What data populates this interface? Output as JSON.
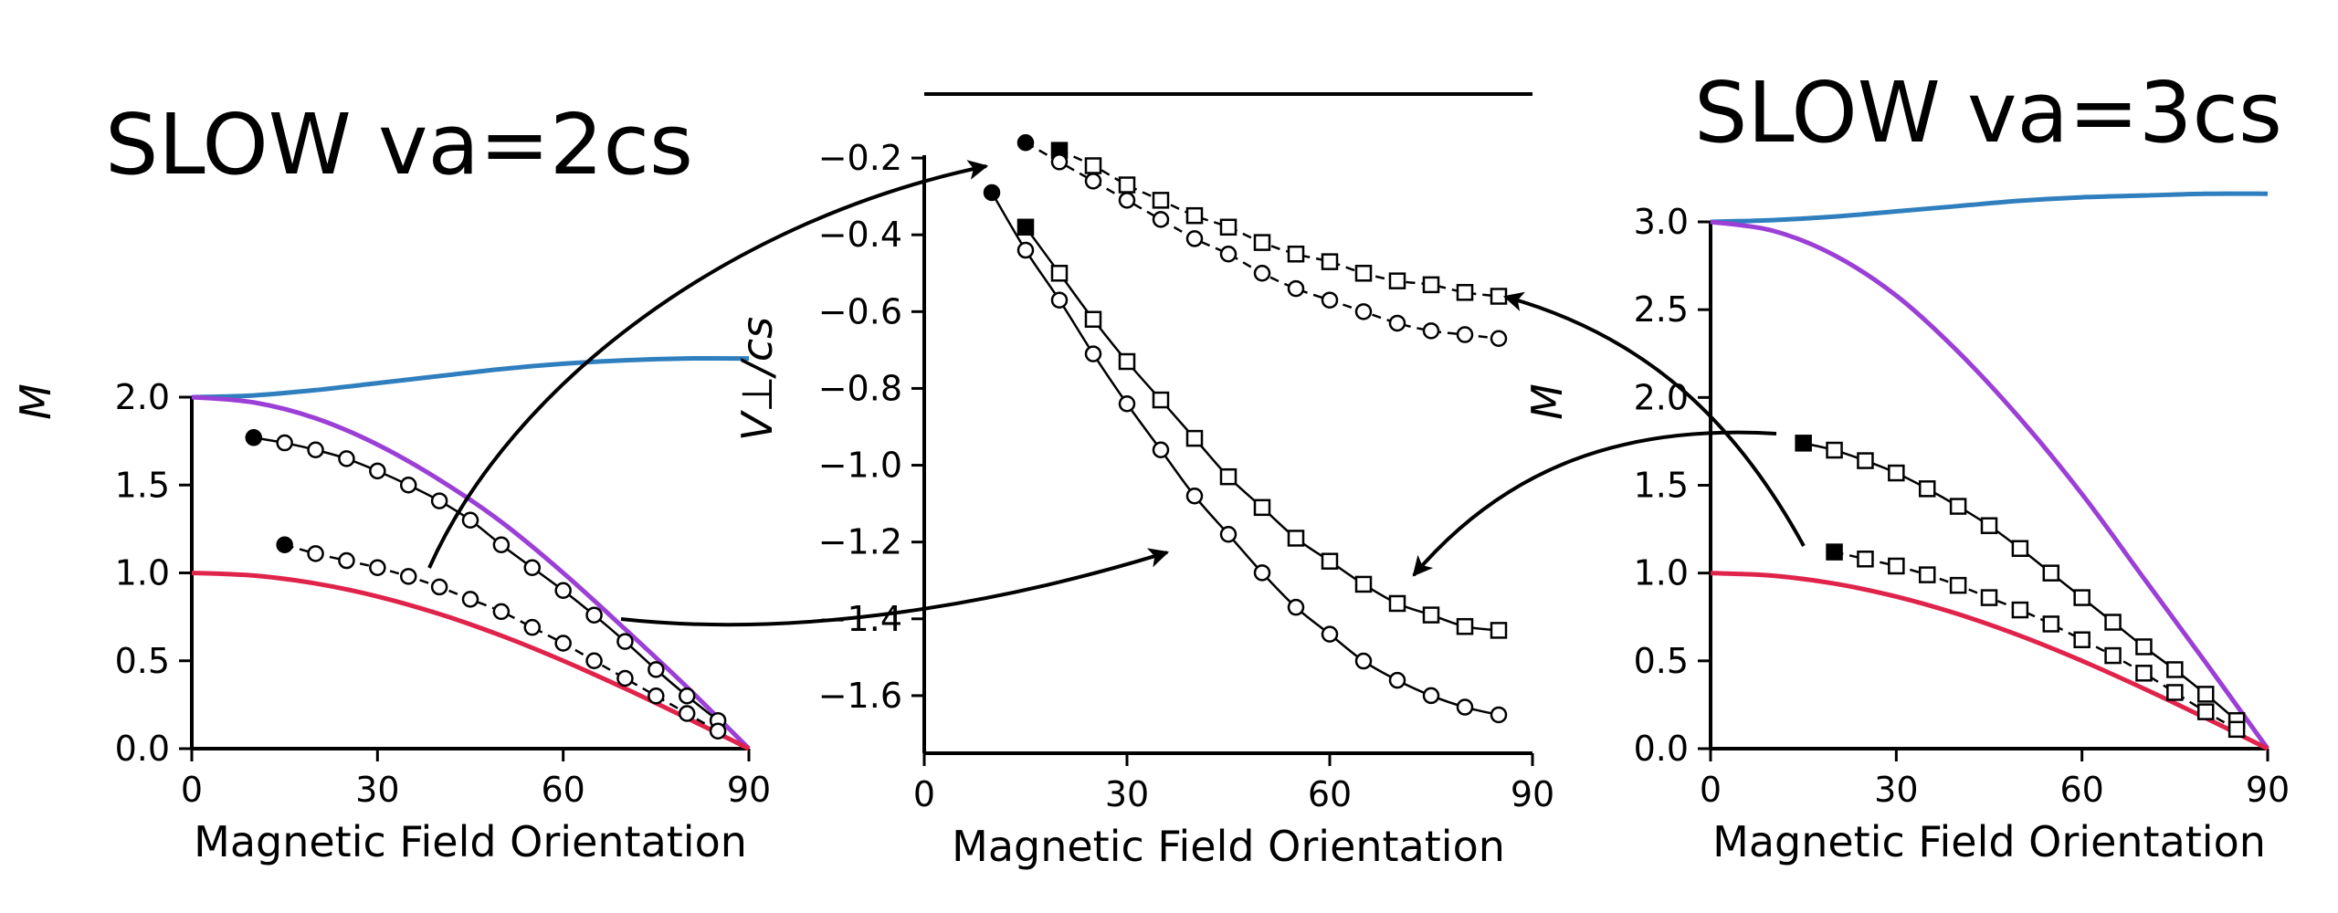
{
  "titles": {
    "left": "SLOW va=2cs",
    "right": "SLOW va=3cs"
  },
  "colors": {
    "blue": "#2f7fbf",
    "purple": "#9b3fd6",
    "red": "#e0234a",
    "black": "#000000"
  },
  "chart_data": [
    {
      "type": "line",
      "panel": "left",
      "xlabel": "Magnetic Field Orientation",
      "ylabel": "M",
      "xlim": [
        0,
        90
      ],
      "ylim": [
        0,
        2.0
      ],
      "xticks": [
        0,
        30,
        60,
        90
      ],
      "yticks": [
        0.0,
        0.5,
        1.0,
        1.5,
        2.0
      ],
      "xtick_labels": [
        "0",
        "30",
        "60",
        "90"
      ],
      "ytick_labels": [
        "0.0",
        "0.5",
        "1.0",
        "1.5",
        "2.0"
      ],
      "curves": [
        {
          "color": "#2f7fbf",
          "x": [
            0,
            10,
            20,
            30,
            40,
            50,
            60,
            70,
            80,
            90
          ],
          "y": [
            2.0,
            2.01,
            2.04,
            2.08,
            2.12,
            2.16,
            2.19,
            2.21,
            2.22,
            2.22
          ]
        },
        {
          "color": "#9b3fd6",
          "x": [
            0,
            10,
            20,
            30,
            40,
            50,
            60,
            70,
            80,
            90
          ],
          "y": [
            2.0,
            1.97,
            1.88,
            1.73,
            1.53,
            1.29,
            1.0,
            0.68,
            0.35,
            0.0
          ]
        },
        {
          "color": "#e0234a",
          "x": [
            0,
            10,
            20,
            30,
            40,
            50,
            60,
            70,
            80,
            90
          ],
          "y": [
            1.0,
            0.985,
            0.94,
            0.866,
            0.766,
            0.643,
            0.5,
            0.342,
            0.174,
            0.0
          ]
        }
      ],
      "markers": [
        {
          "marker": "circle",
          "linestyle": "solid",
          "x": [
            10,
            15,
            20,
            25,
            30,
            35,
            40,
            45,
            50,
            55,
            60,
            65,
            70,
            75,
            80,
            85
          ],
          "y": [
            1.77,
            1.74,
            1.7,
            1.65,
            1.58,
            1.5,
            1.41,
            1.3,
            1.16,
            1.03,
            0.9,
            0.76,
            0.61,
            0.45,
            0.3,
            0.16
          ]
        },
        {
          "marker": "circle",
          "linestyle": "dashed",
          "x": [
            15,
            20,
            25,
            30,
            35,
            40,
            45,
            50,
            55,
            60,
            65,
            70,
            75,
            80,
            85
          ],
          "y": [
            1.16,
            1.11,
            1.07,
            1.03,
            0.98,
            0.92,
            0.85,
            0.78,
            0.69,
            0.6,
            0.5,
            0.4,
            0.3,
            0.2,
            0.1
          ]
        }
      ]
    },
    {
      "type": "line",
      "panel": "middle",
      "xlabel": "Magnetic Field Orientation",
      "ylabel": "V⊥/cs",
      "xlim": [
        0,
        90
      ],
      "ylim": [
        -1.75,
        -0.05
      ],
      "xticks": [
        0,
        30,
        60,
        90
      ],
      "yticks": [
        -0.2,
        -0.4,
        -0.6,
        -0.8,
        -1.0,
        -1.2,
        -1.4,
        -1.6
      ],
      "xtick_labels": [
        "0",
        "30",
        "60",
        "90"
      ],
      "ytick_labels": [
        "−0.2",
        "−0.4",
        "−0.6",
        "−0.8",
        "−1.0",
        "−1.2",
        "−1.4",
        "−1.6"
      ],
      "markers": [
        {
          "marker": "square",
          "linestyle": "dashed",
          "x": [
            20,
            25,
            30,
            35,
            40,
            45,
            50,
            55,
            60,
            65,
            70,
            75,
            80,
            85
          ],
          "y": [
            -0.18,
            -0.22,
            -0.27,
            -0.31,
            -0.35,
            -0.38,
            -0.42,
            -0.45,
            -0.47,
            -0.5,
            -0.52,
            -0.53,
            -0.55,
            -0.56
          ]
        },
        {
          "marker": "circle",
          "linestyle": "dashed",
          "x": [
            15,
            20,
            25,
            30,
            35,
            40,
            45,
            50,
            55,
            60,
            65,
            70,
            75,
            80,
            85
          ],
          "y": [
            -0.16,
            -0.21,
            -0.26,
            -0.31,
            -0.36,
            -0.41,
            -0.45,
            -0.5,
            -0.54,
            -0.57,
            -0.6,
            -0.63,
            -0.65,
            -0.66,
            -0.67
          ]
        },
        {
          "marker": "square",
          "linestyle": "solid",
          "x": [
            15,
            20,
            25,
            30,
            35,
            40,
            45,
            50,
            55,
            60,
            65,
            70,
            75,
            80,
            85
          ],
          "y": [
            -0.38,
            -0.5,
            -0.62,
            -0.73,
            -0.83,
            -0.93,
            -1.03,
            -1.11,
            -1.19,
            -1.25,
            -1.31,
            -1.36,
            -1.39,
            -1.42,
            -1.43
          ]
        },
        {
          "marker": "circle",
          "linestyle": "solid",
          "x": [
            10,
            15,
            20,
            25,
            30,
            35,
            40,
            45,
            50,
            55,
            60,
            65,
            70,
            75,
            80,
            85
          ],
          "y": [
            -0.29,
            -0.44,
            -0.57,
            -0.71,
            -0.84,
            -0.96,
            -1.08,
            -1.18,
            -1.28,
            -1.37,
            -1.44,
            -1.51,
            -1.56,
            -1.6,
            -1.63,
            -1.65
          ]
        }
      ]
    },
    {
      "type": "line",
      "panel": "right",
      "xlabel": "Magnetic Field Orientation",
      "ylabel": "M",
      "xlim": [
        0,
        90
      ],
      "ylim": [
        0,
        3.0
      ],
      "xticks": [
        0,
        30,
        60,
        90
      ],
      "yticks": [
        0.0,
        0.5,
        1.0,
        1.5,
        2.0,
        2.5,
        3.0
      ],
      "xtick_labels": [
        "0",
        "30",
        "60",
        "90"
      ],
      "ytick_labels": [
        "0.0",
        "0.5",
        "1.0",
        "1.5",
        "2.0",
        "2.5",
        "3.0"
      ],
      "curves": [
        {
          "color": "#2f7fbf",
          "x": [
            0,
            10,
            20,
            30,
            40,
            50,
            60,
            70,
            80,
            90
          ],
          "y": [
            3.0,
            3.01,
            3.03,
            3.06,
            3.09,
            3.12,
            3.14,
            3.15,
            3.16,
            3.16
          ]
        },
        {
          "color": "#9b3fd6",
          "x": [
            0,
            10,
            20,
            30,
            40,
            50,
            60,
            70,
            80,
            90
          ],
          "y": [
            3.0,
            2.95,
            2.81,
            2.58,
            2.26,
            1.88,
            1.45,
            0.97,
            0.49,
            0.0
          ]
        },
        {
          "color": "#e0234a",
          "x": [
            0,
            10,
            20,
            30,
            40,
            50,
            60,
            70,
            80,
            90
          ],
          "y": [
            1.0,
            0.985,
            0.94,
            0.866,
            0.766,
            0.643,
            0.5,
            0.342,
            0.174,
            0.0
          ]
        }
      ],
      "markers": [
        {
          "marker": "square",
          "linestyle": "solid",
          "x": [
            15,
            20,
            25,
            30,
            35,
            40,
            45,
            50,
            55,
            60,
            65,
            70,
            75,
            80,
            85
          ],
          "y": [
            1.74,
            1.7,
            1.64,
            1.57,
            1.48,
            1.38,
            1.27,
            1.14,
            1.0,
            0.86,
            0.72,
            0.58,
            0.45,
            0.31,
            0.16
          ]
        },
        {
          "marker": "square",
          "linestyle": "dashed",
          "x": [
            20,
            25,
            30,
            35,
            40,
            45,
            50,
            55,
            60,
            65,
            70,
            75,
            80,
            85
          ],
          "y": [
            1.12,
            1.08,
            1.04,
            0.99,
            0.93,
            0.86,
            0.79,
            0.71,
            0.62,
            0.53,
            0.43,
            0.32,
            0.21,
            0.11
          ]
        }
      ]
    }
  ]
}
